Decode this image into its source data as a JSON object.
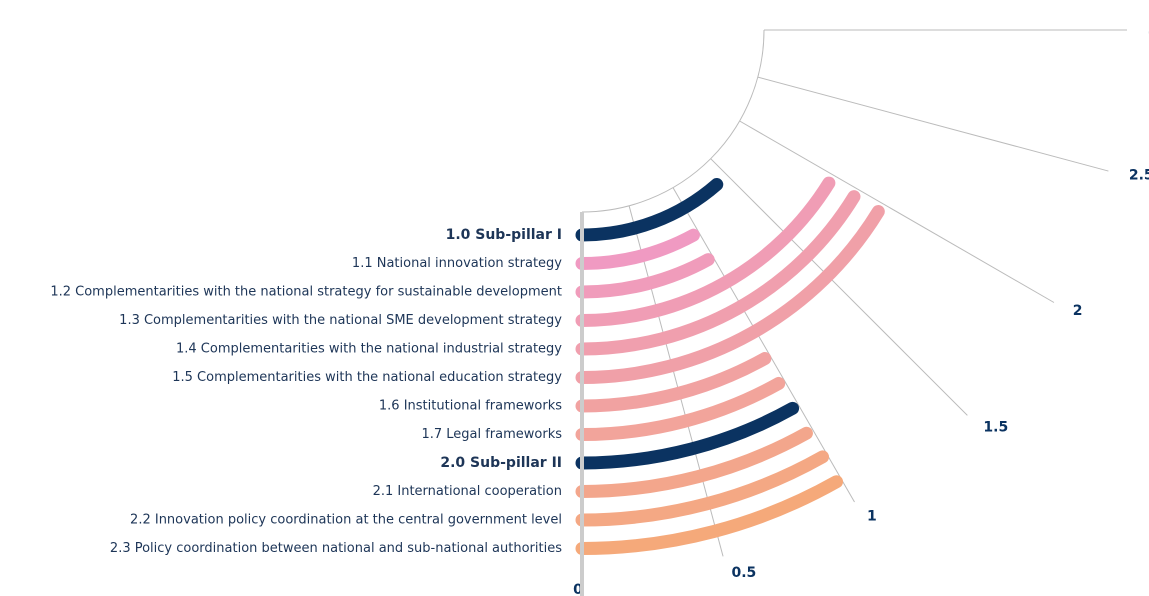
{
  "chart_data": {
    "type": "radial-bar",
    "categories": [
      "1.0 Sub-pillar I",
      "1.1 National innovation strategy",
      "1.2 Complementarities with the national strategy for sustainable development",
      "1.3 Complementarities with the national SME development strategy",
      "1.4 Complementarities with the national industrial strategy",
      "1.5 Complementarities with the national education strategy",
      "1.6 Institutional frameworks",
      "1.7 Legal frameworks",
      "2.0 Sub-pillar II",
      "2.1 International cooperation",
      "2.2 Innovation policy coordination at the central government level",
      "2.3 Policy coordination between national and sub-national authorities"
    ],
    "values": [
      1.37,
      0.95,
      0.96,
      1.94,
      1.95,
      1.95,
      0.97,
      0.97,
      0.97,
      0.97,
      0.98,
      0.98
    ],
    "colors": [
      "#0b3361",
      "#f09ac2",
      "#f09cbb",
      "#f09db5",
      "#f09fae",
      "#f0a0a8",
      "#f1a2a1",
      "#f2a49b",
      "#0b3361",
      "#f3a68c",
      "#f4a884",
      "#f5a97a"
    ],
    "label_weights": [
      "bold",
      "normal",
      "normal",
      "normal",
      "normal",
      "normal",
      "normal",
      "normal",
      "bold",
      "normal",
      "normal",
      "normal"
    ],
    "ylim": [
      0,
      3
    ],
    "yticks": [
      0,
      0.5,
      1,
      1.5,
      2,
      2.5,
      3
    ],
    "grid": true
  }
}
